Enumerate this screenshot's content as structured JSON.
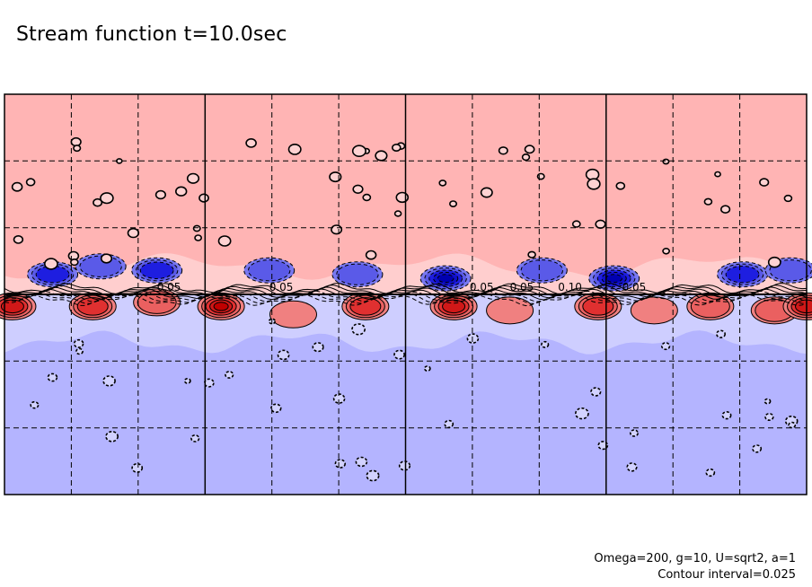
{
  "title": "Stream function t=10.0sec",
  "notes": {
    "params": "Omega=200, g=10, U=sqrt2, a=1",
    "interval": "Contour interval=0.025"
  },
  "chart_data": {
    "type": "heatmap",
    "title": "Stream function t=10.0sec",
    "field": "stream function",
    "time": "t=10.0sec",
    "contour_interval": 0.025,
    "colors": {
      "positive_background": "#ffb4b4",
      "positive_light": "#ffd2d2",
      "positive_mid": "#f08080",
      "positive_strong": "#e03030",
      "negative_background": "#b4b4ff",
      "negative_light": "#d2d2ff",
      "negative_mid": "#7878f0",
      "negative_strong": "#1e1ee0",
      "contour": "#000000"
    },
    "contour_labels": [
      "0.05",
      "0.05",
      "0.05",
      "0.05",
      "0.10",
      "0.05"
    ],
    "grid": true,
    "solid_gridlines": 3,
    "dashed_gridlines_x": 8,
    "dashed_gridlines_y": 4,
    "positive_vortices": [
      {
        "x": 0.01,
        "y": 0.53,
        "amp": 4
      },
      {
        "x": 0.11,
        "y": 0.53,
        "amp": 3
      },
      {
        "x": 0.19,
        "y": 0.52,
        "amp": 2
      },
      {
        "x": 0.27,
        "y": 0.53,
        "amp": 5
      },
      {
        "x": 0.36,
        "y": 0.55,
        "amp": 1
      },
      {
        "x": 0.45,
        "y": 0.53,
        "amp": 3
      },
      {
        "x": 0.56,
        "y": 0.53,
        "amp": 4
      },
      {
        "x": 0.63,
        "y": 0.54,
        "amp": 1
      },
      {
        "x": 0.74,
        "y": 0.53,
        "amp": 3
      },
      {
        "x": 0.81,
        "y": 0.54,
        "amp": 1
      },
      {
        "x": 0.88,
        "y": 0.53,
        "amp": 2
      },
      {
        "x": 0.96,
        "y": 0.54,
        "amp": 2
      },
      {
        "x": 1.0,
        "y": 0.53,
        "amp": 4
      }
    ],
    "negative_vortices": [
      {
        "x": 0.06,
        "y": 0.45,
        "amp": 3
      },
      {
        "x": 0.12,
        "y": 0.43,
        "amp": 2
      },
      {
        "x": 0.19,
        "y": 0.44,
        "amp": 3
      },
      {
        "x": 0.33,
        "y": 0.44,
        "amp": 2
      },
      {
        "x": 0.44,
        "y": 0.45,
        "amp": 2
      },
      {
        "x": 0.55,
        "y": 0.46,
        "amp": 5
      },
      {
        "x": 0.67,
        "y": 0.44,
        "amp": 2
      },
      {
        "x": 0.76,
        "y": 0.46,
        "amp": 5
      },
      {
        "x": 0.92,
        "y": 0.45,
        "amp": 3
      },
      {
        "x": 0.98,
        "y": 0.44,
        "amp": 2
      }
    ]
  }
}
